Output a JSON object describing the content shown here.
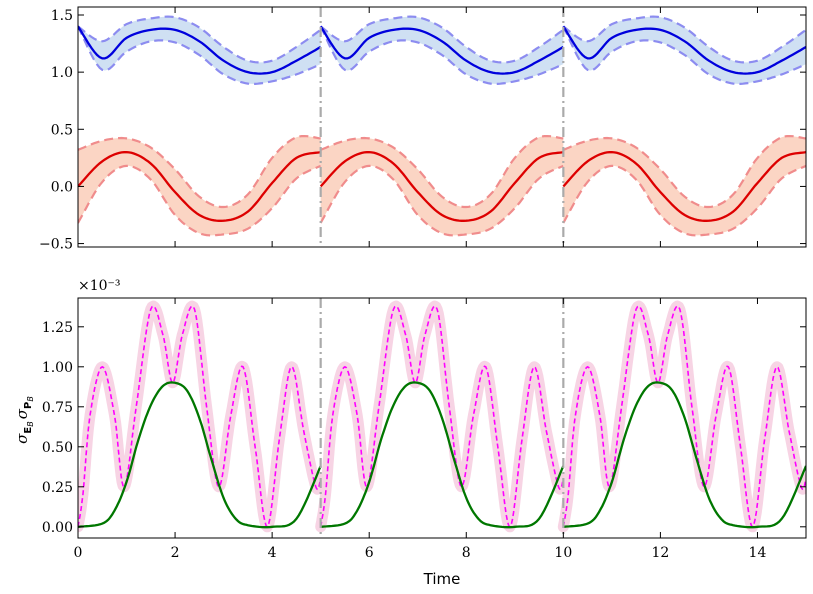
{
  "chart_data": [
    {
      "type": "line",
      "panel": "top",
      "xlim": [
        0,
        15
      ],
      "ylim": [
        -0.53,
        1.57
      ],
      "xticks": [
        0,
        2,
        4,
        6,
        8,
        10,
        12,
        14
      ],
      "yticks": [
        -0.5,
        0.0,
        0.5,
        1.0,
        1.5
      ],
      "ytick_labels": [
        "−0.5",
        "0.0",
        "0.5",
        "1.0",
        "1.5"
      ],
      "vlines": [
        5,
        10
      ],
      "series": [
        {
          "color": "#0000dd",
          "band_color": "#cfe0f3",
          "dashed_color": "#8c8cf0",
          "mean": {
            "x": [
              0,
              0.5,
              1,
              1.5,
              2,
              2.5,
              3,
              3.5,
              4,
              4.5,
              5
            ],
            "y": [
              1.0,
              1.12,
              1.3,
              1.37,
              1.37,
              1.27,
              1.1,
              1.0,
              1.0,
              1.1,
              1.22
            ]
          },
          "reset_value": 1.4,
          "upper_offset": [
            0,
            0.15,
            0.12,
            0.1,
            0.11,
            0.12,
            0.12,
            0.1,
            0.1,
            0.12,
            0.15
          ],
          "lower_offset": [
            0,
            0.1,
            0.12,
            0.1,
            0.11,
            0.12,
            0.12,
            0.1,
            0.08,
            0.12,
            0.15
          ]
        },
        {
          "color": "#dd0000",
          "band_color": "#fbd5c4",
          "dashed_color": "#f08c8c",
          "mean": {
            "x": [
              0,
              0.5,
              1,
              1.5,
              2,
              2.5,
              3,
              3.5,
              4,
              4.5,
              5
            ],
            "y": [
              0.0,
              0.22,
              0.3,
              0.2,
              -0.05,
              -0.25,
              -0.3,
              -0.22,
              0.03,
              0.25,
              0.3
            ]
          },
          "reset_value": 0.0,
          "upper_offset": [
            0.32,
            0.18,
            0.12,
            0.14,
            0.2,
            0.16,
            0.12,
            0.15,
            0.22,
            0.18,
            0.12
          ],
          "lower_offset": [
            0.32,
            0.18,
            0.12,
            0.14,
            0.2,
            0.16,
            0.12,
            0.15,
            0.22,
            0.18,
            0.12
          ]
        }
      ]
    },
    {
      "type": "line",
      "panel": "bottom",
      "xlim": [
        0,
        15
      ],
      "ylim": [
        -0.07,
        1.43
      ],
      "xticks": [
        0,
        2,
        4,
        6,
        8,
        10,
        12,
        14
      ],
      "xtick_labels": [
        "0",
        "2",
        "4",
        "6",
        "8",
        "10",
        "12",
        "14"
      ],
      "yticks": [
        0.0,
        0.25,
        0.5,
        0.75,
        1.0,
        1.25
      ],
      "ytick_labels": [
        "0.00",
        "0.25",
        "0.50",
        "0.75",
        "1.00",
        "1.25"
      ],
      "multiplier": "×10⁻³",
      "xlabel": "Time",
      "ylabel": "σ²_E_B σ²_P_B",
      "vlines": [
        5,
        10
      ],
      "series": [
        {
          "color": "#ff00ff",
          "style": "dashed",
          "halo_color": "#f7d4e4",
          "x": [
            0,
            0.1,
            0.25,
            0.5,
            0.75,
            0.95,
            1.2,
            1.5,
            1.75,
            1.95,
            2.15,
            2.4,
            2.65,
            2.9,
            3.15,
            3.4,
            3.65,
            3.9,
            4.15,
            4.4,
            4.65,
            4.9,
            5
          ],
          "y": [
            0.0,
            0.2,
            0.7,
            1.0,
            0.7,
            0.25,
            0.75,
            1.36,
            1.2,
            0.9,
            1.2,
            1.36,
            0.75,
            0.25,
            0.7,
            1.0,
            0.5,
            0.0,
            0.55,
            1.0,
            0.6,
            0.25,
            0.3
          ]
        },
        {
          "color": "#007700",
          "style": "solid",
          "x": [
            0,
            0.5,
            0.75,
            1,
            1.25,
            1.5,
            1.75,
            2,
            2.25,
            2.5,
            2.75,
            3,
            3.25,
            3.5,
            4,
            4.5,
            5
          ],
          "y": [
            0.0,
            0.02,
            0.1,
            0.28,
            0.55,
            0.76,
            0.88,
            0.9,
            0.85,
            0.68,
            0.42,
            0.18,
            0.05,
            0.01,
            0.0,
            0.05,
            0.38
          ]
        }
      ]
    }
  ]
}
